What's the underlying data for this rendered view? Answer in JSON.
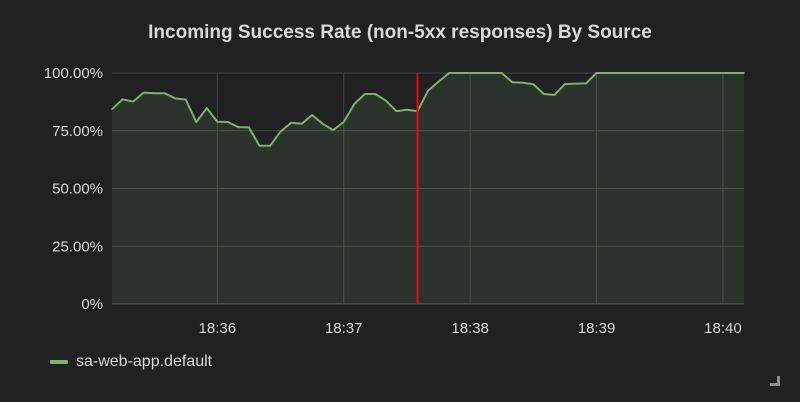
{
  "chart_data": {
    "type": "area",
    "title": "Incoming Success Rate (non-5xx responses) By Source",
    "y_ticks": [
      "0%",
      "25.00%",
      "50.00%",
      "75.00%",
      "100.00%"
    ],
    "x_ticks": [
      "18:36",
      "18:37",
      "18:38",
      "18:39",
      "18:40"
    ],
    "ylim": [
      0,
      100
    ],
    "xlim": [
      "18:35:10",
      "18:40:10"
    ],
    "grid": true,
    "legend_placement": "bottom-left",
    "annotation_time": "18:37:35",
    "annotation_color": "#ff0000",
    "series": [
      {
        "name": "sa-web-app.default",
        "color": "#7eb26d",
        "x": [
          "18:35:10",
          "18:35:15",
          "18:35:20",
          "18:35:25",
          "18:35:30",
          "18:35:35",
          "18:35:40",
          "18:35:45",
          "18:35:50",
          "18:35:55",
          "18:36:00",
          "18:36:05",
          "18:36:10",
          "18:36:15",
          "18:36:20",
          "18:36:25",
          "18:36:30",
          "18:36:35",
          "18:36:40",
          "18:36:45",
          "18:36:50",
          "18:36:55",
          "18:37:00",
          "18:37:05",
          "18:37:10",
          "18:37:15",
          "18:37:20",
          "18:37:25",
          "18:37:30",
          "18:37:35",
          "18:37:40",
          "18:37:45",
          "18:37:50",
          "18:37:55",
          "18:38:00",
          "18:38:05",
          "18:38:10",
          "18:38:15",
          "18:38:20",
          "18:38:25",
          "18:38:30",
          "18:38:35",
          "18:38:40",
          "18:38:45",
          "18:38:50",
          "18:38:55",
          "18:39:00",
          "18:39:05",
          "18:39:10",
          "18:39:15",
          "18:39:20",
          "18:39:25",
          "18:39:30",
          "18:39:35",
          "18:39:40",
          "18:39:45",
          "18:39:50",
          "18:39:55",
          "18:40:00",
          "18:40:05",
          "18:40:10"
        ],
        "values": [
          84.3,
          88.6,
          87.6,
          91.5,
          91.2,
          91.2,
          89.0,
          88.5,
          78.8,
          84.8,
          78.9,
          78.8,
          76.6,
          76.5,
          68.5,
          68.5,
          74.6,
          78.5,
          78.0,
          81.8,
          78.0,
          75.3,
          78.8,
          86.6,
          90.9,
          90.9,
          88.0,
          83.5,
          84.1,
          83.5,
          92.3,
          96.2,
          100,
          100,
          100,
          100,
          100,
          100,
          96.0,
          95.8,
          95.1,
          90.9,
          90.5,
          95.2,
          95.4,
          95.5,
          100,
          100,
          100,
          100,
          100,
          100,
          100,
          100,
          100,
          100,
          100,
          100,
          100,
          100,
          100
        ]
      }
    ]
  }
}
